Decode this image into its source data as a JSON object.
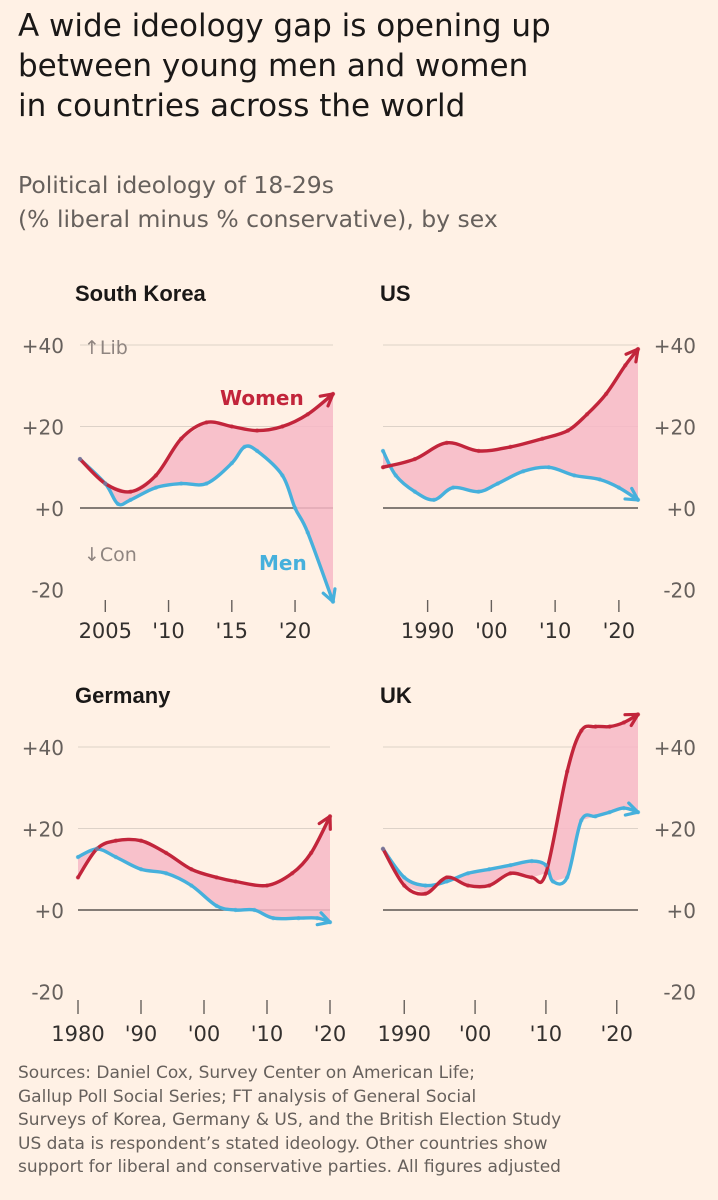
{
  "header": {
    "title_lines": [
      "A wide ideology gap is opening up",
      "between young men and women",
      "in countries across the world"
    ],
    "subtitle_lines": [
      "Political ideology of 18-29s",
      "(% liberal minus % conservative), by sex"
    ]
  },
  "labels": {
    "lib": "↑Lib",
    "con": "↓Con",
    "women": "Women",
    "men": "Men"
  },
  "colors": {
    "women": "#c2253b",
    "men": "#46b0dc",
    "gap_fill": "#f7b9c7",
    "background": "#fff1e5"
  },
  "chart_data": [
    {
      "type": "line",
      "title": "South Korea",
      "y_ticks": [
        "+40",
        "+20",
        "+0",
        "-20"
      ],
      "ylim": [
        -20,
        40
      ],
      "xlim": [
        2003,
        2023
      ],
      "x_ticks": [
        2005,
        2010,
        2015,
        2020
      ],
      "x_tick_labels": [
        "2005",
        "'10",
        "'15",
        "'20"
      ],
      "series": [
        {
          "name": "Women",
          "x": [
            2003,
            2005,
            2007,
            2009,
            2011,
            2013,
            2015,
            2017,
            2019,
            2021,
            2023
          ],
          "values": [
            12,
            6,
            4,
            8,
            17,
            21,
            20,
            19,
            20,
            23,
            28
          ]
        },
        {
          "name": "Men",
          "x": [
            2003,
            2005,
            2006,
            2007,
            2009,
            2011,
            2013,
            2015,
            2016,
            2017,
            2019,
            2020,
            2021,
            2023
          ],
          "values": [
            12,
            6,
            1,
            2,
            5,
            6,
            6,
            11,
            15,
            14,
            8,
            0,
            -6,
            -23
          ]
        }
      ]
    },
    {
      "type": "line",
      "title": "US",
      "y_ticks": [
        "+40",
        "+20",
        "+0",
        "-20"
      ],
      "ylim": [
        -20,
        40
      ],
      "xlim": [
        1983,
        2023
      ],
      "x_ticks": [
        1990,
        2000,
        2010,
        2020
      ],
      "x_tick_labels": [
        "1990",
        "'00",
        "'10",
        "'20"
      ],
      "series": [
        {
          "name": "Women",
          "x": [
            1983,
            1988,
            1993,
            1998,
            2003,
            2008,
            2012,
            2015,
            2018,
            2021,
            2023
          ],
          "values": [
            10,
            12,
            16,
            14,
            15,
            17,
            19,
            23,
            28,
            35,
            39
          ]
        },
        {
          "name": "Men",
          "x": [
            1983,
            1985,
            1988,
            1991,
            1994,
            1998,
            2001,
            2005,
            2009,
            2013,
            2017,
            2020,
            2023
          ],
          "values": [
            14,
            8,
            4,
            2,
            5,
            4,
            6,
            9,
            10,
            8,
            7,
            5,
            2
          ]
        }
      ]
    },
    {
      "type": "line",
      "title": "Germany",
      "y_ticks": [
        "+40",
        "+20",
        "+0",
        "-20"
      ],
      "ylim": [
        -20,
        40
      ],
      "xlim": [
        1980,
        2020
      ],
      "x_ticks": [
        1980,
        1990,
        2000,
        2010,
        2020
      ],
      "x_tick_labels": [
        "1980",
        "'90",
        "'00",
        "'10",
        "'20"
      ],
      "series": [
        {
          "name": "Women",
          "x": [
            1980,
            1983,
            1986,
            1990,
            1994,
            1998,
            2002,
            2005,
            2010,
            2014,
            2017,
            2020
          ],
          "values": [
            8,
            15,
            17,
            17,
            14,
            10,
            8,
            7,
            6,
            9,
            14,
            23
          ]
        },
        {
          "name": "Men",
          "x": [
            1980,
            1983,
            1986,
            1990,
            1994,
            1998,
            2002,
            2005,
            2008,
            2011,
            2015,
            2018,
            2020
          ],
          "values": [
            13,
            15,
            13,
            10,
            9,
            6,
            1,
            0,
            0,
            -2,
            -2,
            -2,
            -3
          ]
        }
      ]
    },
    {
      "type": "line",
      "title": "UK",
      "y_ticks": [
        "+40",
        "+20",
        "+0",
        "-20"
      ],
      "ylim": [
        -20,
        40
      ],
      "xlim": [
        1987,
        2023
      ],
      "x_ticks": [
        1990,
        2000,
        2010,
        2020
      ],
      "x_tick_labels": [
        "1990",
        "'00",
        "'10",
        "'20"
      ],
      "series": [
        {
          "name": "Women",
          "x": [
            1987,
            1990,
            1993,
            1996,
            1999,
            2002,
            2005,
            2008,
            2010,
            2013,
            2015,
            2017,
            2019,
            2021,
            2023
          ],
          "values": [
            15,
            6,
            4,
            8,
            6,
            6,
            9,
            8,
            9,
            34,
            44,
            45,
            45,
            46,
            48
          ]
        },
        {
          "name": "Men",
          "x": [
            1987,
            1990,
            1993,
            1996,
            1999,
            2002,
            2005,
            2008,
            2010,
            2011,
            2013,
            2015,
            2017,
            2019,
            2021,
            2023
          ],
          "values": [
            15,
            8,
            6,
            7,
            9,
            10,
            11,
            12,
            11,
            7,
            8,
            22,
            23,
            24,
            25,
            24
          ]
        }
      ]
    }
  ],
  "footer": {
    "lines": [
      "Sources: Daniel Cox, Survey Center on American Life;",
      "Gallup Poll Social Series; FT analysis of General Social",
      "Surveys of Korea, Germany & US, and the British Election Study",
      "US data is respondent’s stated ideology. Other countries show",
      "support for liberal and conservative parties. All figures adjusted"
    ]
  }
}
